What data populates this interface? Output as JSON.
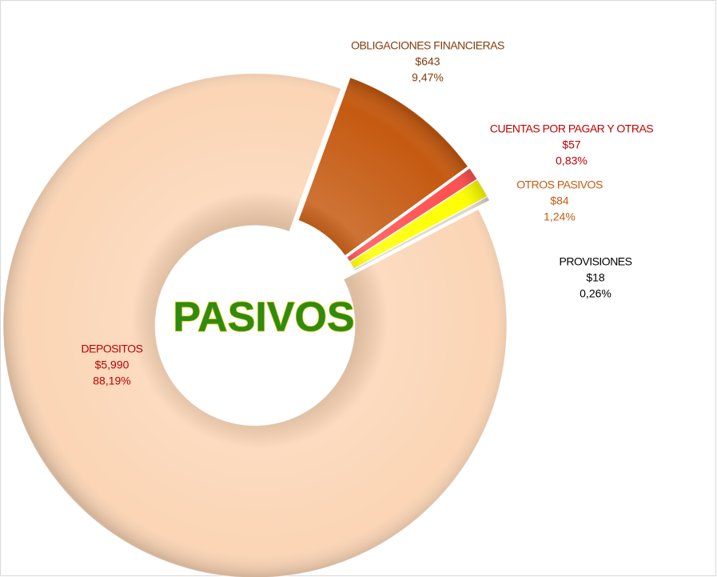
{
  "chart_data": {
    "type": "pie",
    "donut": true,
    "center_text": "PASIVOS",
    "categories": [
      "OBLIGACIONES FINANCIERAS",
      "CUENTAS POR PAGAR Y OTRAS",
      "OTROS PASIVOS",
      "PROVISIONES",
      "DEPOSITOS"
    ],
    "values": [
      643,
      57,
      84,
      18,
      5990
    ],
    "value_labels": [
      "$643",
      "$57",
      "$84",
      "$18",
      "$5,990"
    ],
    "percents": [
      9.47,
      0.83,
      1.24,
      0.26,
      88.19
    ],
    "percent_labels": [
      "9,47%",
      "0,83%",
      "1,24%",
      "0,26%",
      "88,19%"
    ],
    "colors": [
      "#c55a11",
      "#ff5050",
      "#ffff00",
      "#e0d6cc",
      "#fbd5b5"
    ],
    "label_colors": [
      "#843c0c",
      "#c00000",
      "#c55a11",
      "#000000",
      "#c00000"
    ]
  }
}
